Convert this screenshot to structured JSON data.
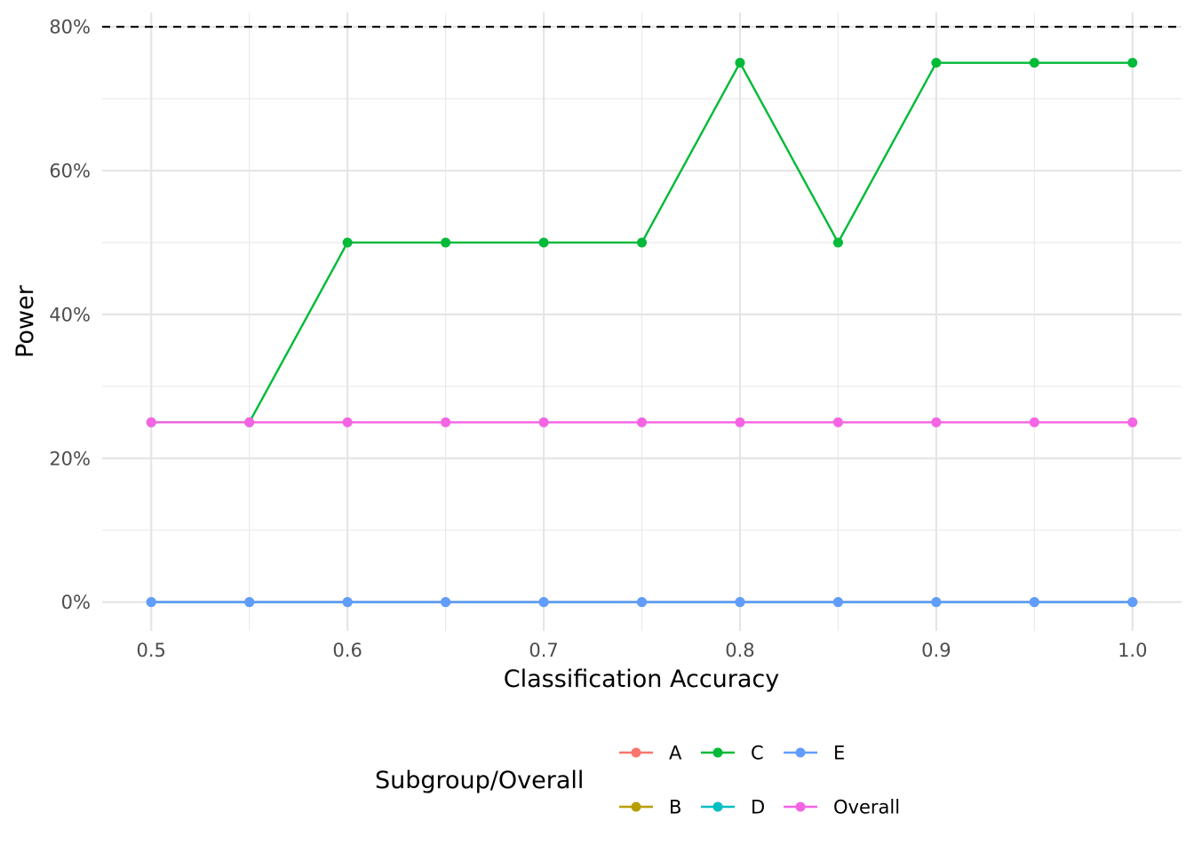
{
  "chart_data": {
    "type": "line",
    "xlabel": "Classification Accuracy",
    "ylabel": "Power",
    "x": [
      0.5,
      0.55,
      0.6,
      0.65,
      0.7,
      0.75,
      0.8,
      0.85,
      0.9,
      0.95,
      1.0
    ],
    "xlim": [
      0.475,
      1.025
    ],
    "ylim": [
      -0.04,
      0.82
    ],
    "x_ticks": [
      0.5,
      0.6,
      0.7,
      0.8,
      0.9,
      1.0
    ],
    "x_tick_labels": [
      "0.5",
      "0.6",
      "0.7",
      "0.8",
      "0.9",
      "1.0"
    ],
    "y_ticks": [
      0,
      0.2,
      0.4,
      0.6,
      0.8
    ],
    "y_tick_labels": [
      "0%",
      "20%",
      "40%",
      "60%",
      "80%"
    ],
    "reference_line": {
      "y": 0.8,
      "style": "dashed",
      "color": "#000000"
    },
    "grid": true,
    "legend": {
      "title": "Subgroup/Overall",
      "position": "bottom"
    },
    "series": [
      {
        "name": "A",
        "color": "#F8766D",
        "values": [
          0,
          0,
          0,
          0,
          0,
          0,
          0,
          0,
          0,
          0,
          0
        ]
      },
      {
        "name": "B",
        "color": "#B79F00",
        "values": [
          0,
          0,
          0,
          0,
          0,
          0,
          0,
          0,
          0,
          0,
          0
        ]
      },
      {
        "name": "C",
        "color": "#00BA38",
        "values": [
          0.25,
          0.25,
          0.5,
          0.5,
          0.5,
          0.5,
          0.75,
          0.5,
          0.75,
          0.75,
          0.75
        ]
      },
      {
        "name": "D",
        "color": "#00BFC4",
        "values": [
          0,
          0,
          0,
          0,
          0,
          0,
          0,
          0,
          0,
          0,
          0
        ]
      },
      {
        "name": "E",
        "color": "#619CFF",
        "values": [
          0,
          0,
          0,
          0,
          0,
          0,
          0,
          0,
          0,
          0,
          0
        ]
      },
      {
        "name": "Overall",
        "color": "#F564E3",
        "values": [
          0.25,
          0.25,
          0.25,
          0.25,
          0.25,
          0.25,
          0.25,
          0.25,
          0.25,
          0.25,
          0.25
        ]
      }
    ]
  }
}
